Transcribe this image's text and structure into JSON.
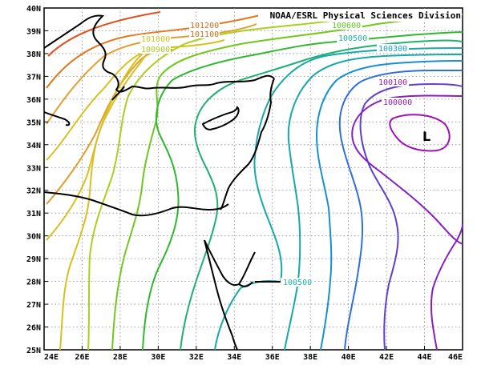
{
  "credit": "NOAA/ESRL Physical Sciences Division",
  "low_label": "L",
  "lat_ticks": [
    "40N",
    "39N",
    "38N",
    "37N",
    "36N",
    "35N",
    "34N",
    "33N",
    "32N",
    "31N",
    "30N",
    "29N",
    "28N",
    "27N",
    "26N",
    "25N"
  ],
  "lon_ticks": [
    "24E",
    "26E",
    "28E",
    "30E",
    "32E",
    "34E",
    "36E",
    "38E",
    "40E",
    "42E",
    "44E",
    "46E"
  ],
  "contour_labels": [
    {
      "text": "101200",
      "color": "#c0701e"
    },
    {
      "text": "101100",
      "color": "#c0701e"
    },
    {
      "text": "101000",
      "color": "#d0c020"
    },
    {
      "text": "100900",
      "color": "#a8c820"
    },
    {
      "text": "100600",
      "color": "#5ec81c"
    },
    {
      "text": "100500",
      "color": "#1eb0a0"
    },
    {
      "text": "100300",
      "color": "#1e9ad8"
    },
    {
      "text": "100100",
      "color": "#9020b8"
    },
    {
      "text": "100000",
      "color": "#9020b8"
    },
    {
      "text": "100500",
      "color": "#1eb0a0"
    }
  ],
  "colors": {
    "c101300": "#e05020",
    "c101200": "#e07a20",
    "c101100": "#e0a030",
    "c101000": "#d8c020",
    "c100900": "#a8d020",
    "c100800": "#70c81c",
    "c100700": "#30b830",
    "c100600": "#20b070",
    "c100500": "#18a8a8",
    "c100400": "#1890d0",
    "c100300": "#3070d8",
    "c100200": "#6040d0",
    "c100100": "#8820c0",
    "c100000": "#a010b8"
  }
}
